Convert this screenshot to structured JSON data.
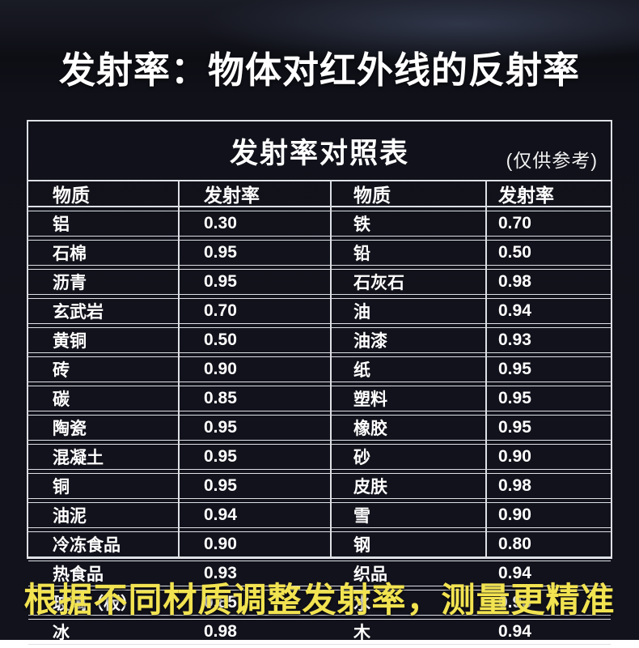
{
  "page": {
    "heading": "发射率：物体对红外线的反射率",
    "footer": "根据不同材质调整发射率，测量更精准"
  },
  "table": {
    "title": "发射率对照表",
    "note": "(仅供参考)",
    "headers": [
      "物质",
      "发射率",
      "物质",
      "发射率"
    ],
    "rows": [
      [
        "铝",
        "0.30",
        "铁",
        "0.70"
      ],
      [
        "石棉",
        "0.95",
        "铅",
        "0.50"
      ],
      [
        "沥青",
        "0.95",
        "石灰石",
        "0.98"
      ],
      [
        "玄武岩",
        "0.70",
        "油",
        "0.94"
      ],
      [
        "黄铜",
        "0.50",
        "油漆",
        "0.93"
      ],
      [
        "砖",
        "0.90",
        "纸",
        "0.95"
      ],
      [
        "碳",
        "0.85",
        "塑料",
        "0.95"
      ],
      [
        "陶瓷",
        "0.95",
        "橡胶",
        "0.95"
      ],
      [
        "混凝土",
        "0.95",
        "砂",
        "0.90"
      ],
      [
        "铜",
        "0.95",
        "皮肤",
        "0.98"
      ],
      [
        "油泥",
        "0.94",
        "雪",
        "0.90"
      ],
      [
        "冷冻食品",
        "0.90",
        "钢",
        "0.80"
      ],
      [
        "热食品",
        "0.93",
        "织品",
        "0.94"
      ],
      [
        "玻璃（板）",
        "0.85",
        "水",
        "0.93"
      ],
      [
        "冰",
        "0.98",
        "木",
        "0.94"
      ]
    ]
  },
  "colors": {
    "background": "#12121c",
    "table_border": "#dde0e5",
    "heading_text": "#ffffff",
    "footer_accent": "#f2e351"
  }
}
